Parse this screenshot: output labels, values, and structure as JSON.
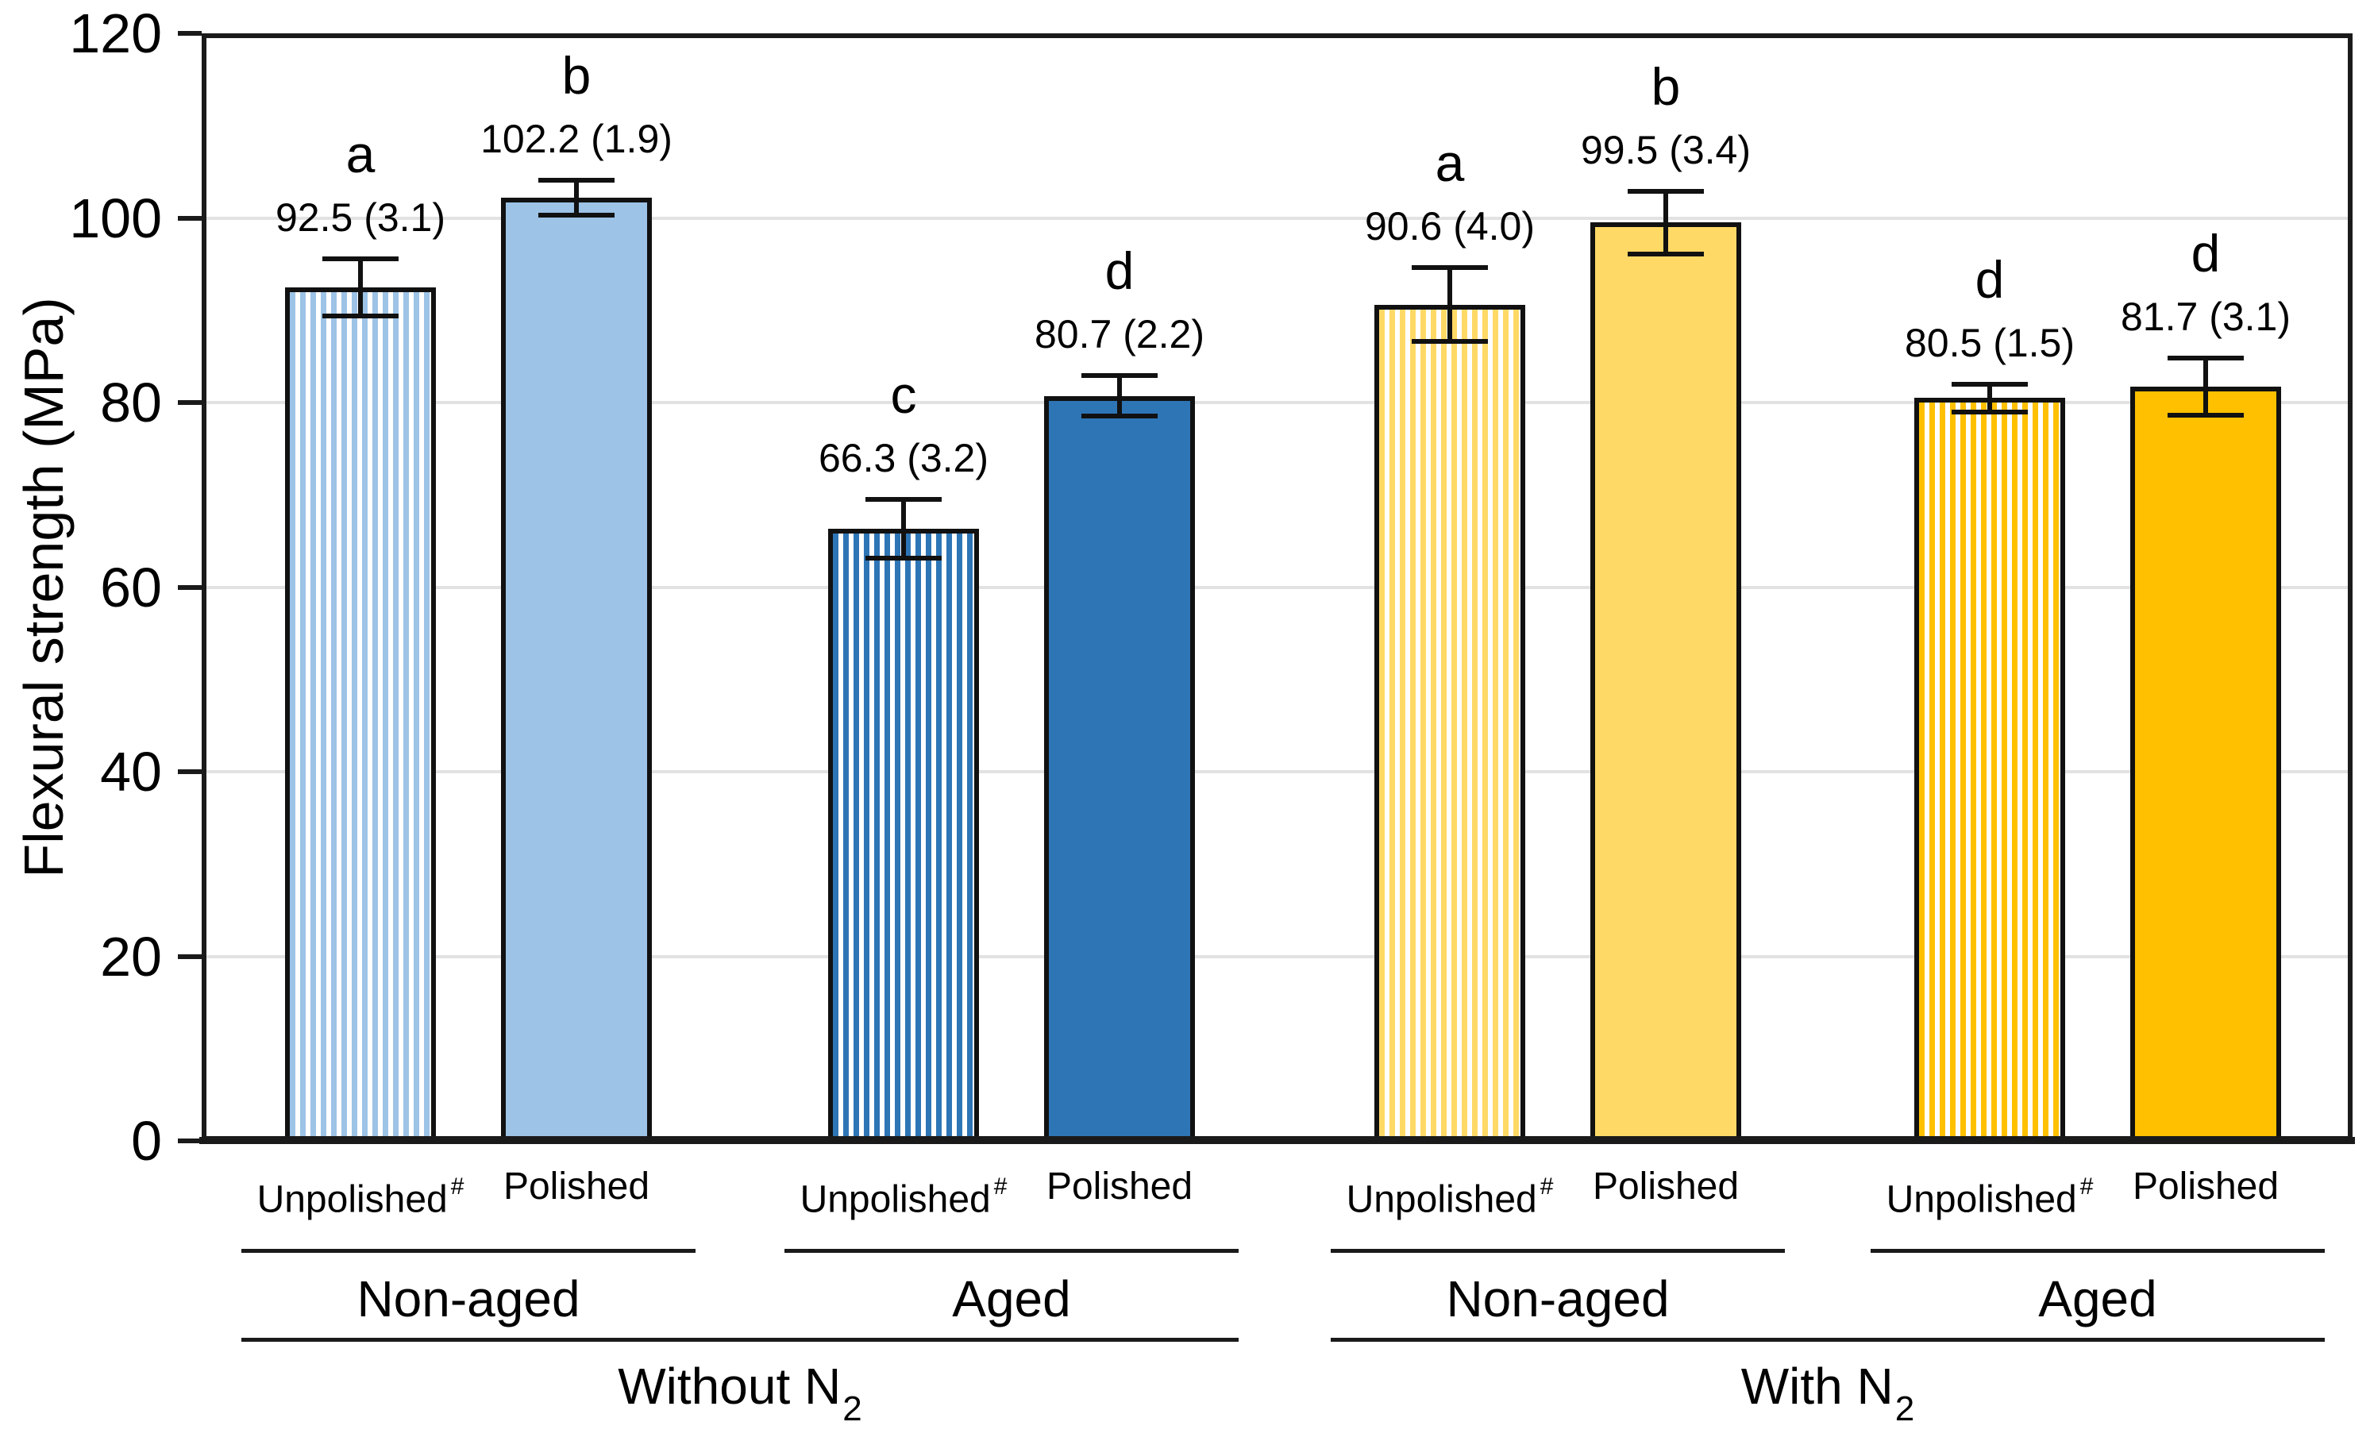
{
  "chart_data": {
    "type": "bar",
    "title": "",
    "ylabel": "Flexural strength (MPa)",
    "xlabel": "",
    "ylim": [
      0,
      120
    ],
    "yticks": [
      0,
      20,
      40,
      60,
      80,
      100,
      120
    ],
    "grid": true,
    "legend": "none",
    "error_bars": "mean (SD), both directions, with caps",
    "colors": {
      "light_blue": "#9DC3E6",
      "dark_blue": "#2E75B6",
      "light_yellow": "#FFD966",
      "orange": "#FFC000",
      "bar_border": "#111111",
      "grid": "#E2E2E2",
      "axis": "#1A1A1A"
    },
    "bars": [
      {
        "category": "Unpolished",
        "category_sup": "#",
        "letter": "a",
        "value": 92.5,
        "sd": 3.1,
        "label": "92.5 (3.1)",
        "fill": "#9DC3E6",
        "pattern": "striped"
      },
      {
        "category": "Polished",
        "category_sup": "",
        "letter": "b",
        "value": 102.2,
        "sd": 1.9,
        "label": "102.2 (1.9)",
        "fill": "#9DC3E6",
        "pattern": "solid"
      },
      {
        "category": "Unpolished",
        "category_sup": "#",
        "letter": "c",
        "value": 66.3,
        "sd": 3.2,
        "label": "66.3 (3.2)",
        "fill": "#2E75B6",
        "pattern": "striped"
      },
      {
        "category": "Polished",
        "category_sup": "",
        "letter": "d",
        "value": 80.7,
        "sd": 2.2,
        "label": "80.7 (2.2)",
        "fill": "#2E75B6",
        "pattern": "solid"
      },
      {
        "category": "Unpolished",
        "category_sup": "#",
        "letter": "a",
        "value": 90.6,
        "sd": 4.0,
        "label": "90.6 (4.0)",
        "fill": "#FFD966",
        "pattern": "striped"
      },
      {
        "category": "Polished",
        "category_sup": "",
        "letter": "b",
        "value": 99.5,
        "sd": 3.4,
        "label": "99.5 (3.4)",
        "fill": "#FFD966",
        "pattern": "solid"
      },
      {
        "category": "Unpolished",
        "category_sup": "#",
        "letter": "d",
        "value": 80.5,
        "sd": 1.5,
        "label": "80.5 (1.5)",
        "fill": "#FFC000",
        "pattern": "striped"
      },
      {
        "category": "Polished",
        "category_sup": "",
        "letter": "d",
        "value": 81.7,
        "sd": 3.1,
        "label": "81.7 (3.1)",
        "fill": "#FFC000",
        "pattern": "solid"
      }
    ],
    "subgroups": [
      {
        "label": "Non-aged",
        "from": 0,
        "to": 1
      },
      {
        "label": "Aged",
        "from": 2,
        "to": 3
      },
      {
        "label": "Non-aged",
        "from": 4,
        "to": 5
      },
      {
        "label": "Aged",
        "from": 6,
        "to": 7
      }
    ],
    "groups": [
      {
        "label": "Without N",
        "sub": "2",
        "from": 0,
        "to": 3
      },
      {
        "label": "With N",
        "sub": "2",
        "from": 4,
        "to": 7
      }
    ]
  }
}
